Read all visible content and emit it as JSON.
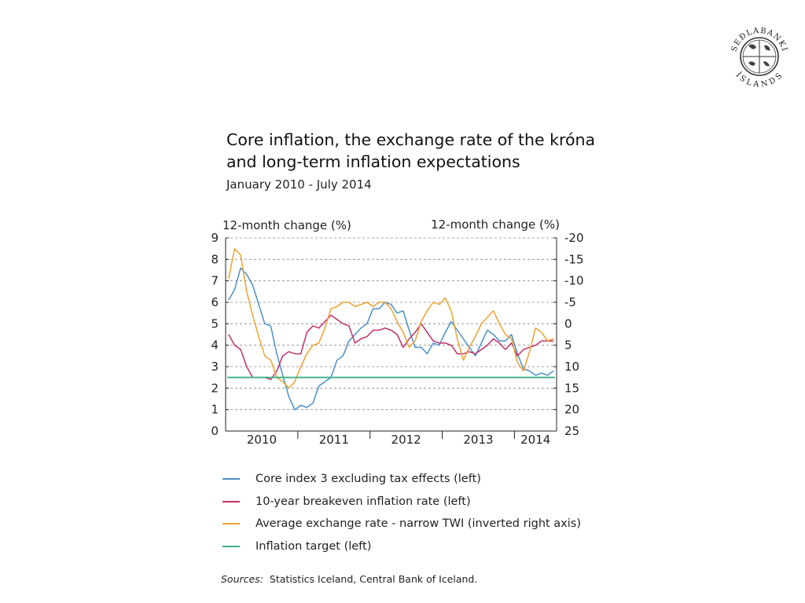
{
  "logo": {
    "top_text": "SEÐLABANKI",
    "bottom_text": "ÍSLANDS"
  },
  "chart_data": {
    "type": "line",
    "title": "Core inflation, the exchange rate of the króna and long-term inflation expectations",
    "title_lines": [
      "Core inflation, the exchange rate of the króna",
      "and long-term inflation expectations"
    ],
    "subtitle": "January 2010 - July 2014",
    "left_axis": {
      "label": "12-month change (%)",
      "range": [
        0,
        9
      ],
      "ticks": [
        "0",
        "1",
        "2",
        "3",
        "4",
        "5",
        "6",
        "7",
        "8",
        "9"
      ]
    },
    "right_axis": {
      "label": "12-month change (%)",
      "inverted": true,
      "range": [
        -20,
        25
      ],
      "ticks": [
        "-20",
        "-15",
        "-10",
        "-5",
        "0",
        "5",
        "10",
        "15",
        "20",
        "25"
      ]
    },
    "x_axis": {
      "start": "2010-01",
      "end": "2014-07",
      "year_labels": [
        "2010",
        "2011",
        "2012",
        "2013",
        "2014"
      ]
    },
    "grid": "horizontal dashed",
    "legend_position": "bottom",
    "series": [
      {
        "name": "Core index 3 excluding tax effects (left)",
        "axis": "left",
        "color": "#4a90c8",
        "values": [
          6.1,
          6.6,
          7.6,
          7.3,
          6.8,
          5.9,
          5.0,
          4.9,
          3.6,
          2.6,
          1.6,
          1.0,
          1.2,
          1.1,
          1.3,
          2.1,
          2.3,
          2.5,
          3.3,
          3.5,
          4.2,
          4.5,
          4.8,
          5.0,
          5.7,
          5.7,
          6.0,
          5.9,
          5.5,
          5.6,
          4.7,
          3.9,
          3.9,
          3.6,
          4.1,
          4.0,
          4.6,
          5.1,
          4.7,
          4.3,
          3.9,
          3.5,
          4.1,
          4.7,
          4.5,
          4.2,
          4.2,
          4.5,
          3.6,
          2.9,
          2.8,
          2.6,
          2.7,
          2.6,
          2.8
        ]
      },
      {
        "name": "10-year breakeven inflation rate (left)",
        "axis": "left",
        "color": "#c0306a",
        "values": [
          4.5,
          4.0,
          3.8,
          3.0,
          2.5,
          2.5,
          2.5,
          2.4,
          2.8,
          3.5,
          3.7,
          3.6,
          3.6,
          4.6,
          4.9,
          4.8,
          5.1,
          5.4,
          5.2,
          5.0,
          4.9,
          4.1,
          4.3,
          4.4,
          4.7,
          4.7,
          4.8,
          4.7,
          4.5,
          3.9,
          4.3,
          4.6,
          5.0,
          4.6,
          4.2,
          4.1,
          4.1,
          4.0,
          3.6,
          3.6,
          3.7,
          3.6,
          3.8,
          4.0,
          4.3,
          4.1,
          3.8,
          4.1,
          3.5,
          3.8,
          3.9,
          4.0,
          4.2,
          4.2,
          4.2
        ]
      },
      {
        "name": "Average exchange rate - narrow TWI (inverted right axis)",
        "axis": "right",
        "color": "#f0a030",
        "values": [
          -10.5,
          -17.5,
          -16.0,
          -7.5,
          -2.0,
          3.0,
          7.5,
          8.5,
          12.5,
          13.5,
          15.0,
          13.5,
          10.0,
          7.0,
          5.0,
          4.5,
          1.0,
          -3.5,
          -4.0,
          -5.0,
          -5.0,
          -4.0,
          -4.5,
          -5.0,
          -4.0,
          -5.0,
          -5.0,
          -3.5,
          -0.5,
          2.0,
          5.5,
          4.0,
          -0.5,
          -3.0,
          -5.0,
          -4.5,
          -6.0,
          -3.0,
          3.5,
          8.5,
          5.5,
          3.0,
          0.0,
          -1.5,
          -3.0,
          0.0,
          2.5,
          3.5,
          9.0,
          11.0,
          6.5,
          1.0,
          2.0,
          4.0,
          3.5
        ]
      },
      {
        "name": "Inflation target (left)",
        "axis": "left",
        "color": "#3cb08a",
        "constant": 2.5
      }
    ]
  },
  "source": {
    "label": "Sources:",
    "text": "Statistics Iceland, Central Bank of Iceland."
  }
}
